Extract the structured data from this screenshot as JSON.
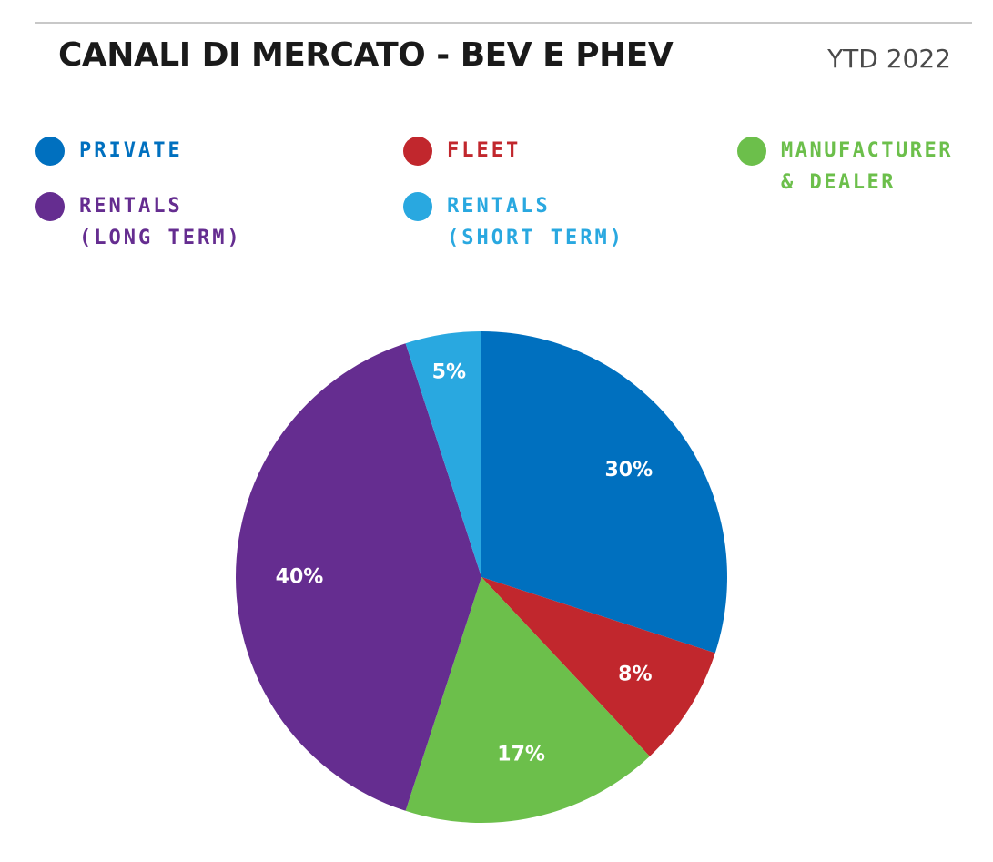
{
  "header": {
    "title": "CANALI DI MERCATO - BEV E PHEV",
    "period": "YTD 2022"
  },
  "legend": {
    "items": [
      {
        "lines": [
          "PRIVATE"
        ],
        "color": "#0070BF"
      },
      {
        "lines": [
          "FLEET"
        ],
        "color": "#C1272D"
      },
      {
        "lines": [
          "MANUFACTURER",
          "& DEALER"
        ],
        "color": "#6CBF4B"
      },
      {
        "lines": [
          "RENTALS",
          "(LONG TERM)"
        ],
        "color": "#652D90"
      },
      {
        "lines": [
          "RENTALS",
          "(SHORT TERM)"
        ],
        "color": "#29A8E0"
      }
    ]
  },
  "chart_data": {
    "type": "pie",
    "title": "CANALI DI MERCATO - BEV E PHEV",
    "subtitle": "YTD 2022",
    "legend_position": "top",
    "slices": [
      {
        "label": "PRIVATE",
        "value": 30,
        "display": "30%",
        "color": "#0070BF"
      },
      {
        "label": "FLEET",
        "value": 8,
        "display": "8%",
        "color": "#C1272D"
      },
      {
        "label": "MANUFACTURER & DEALER",
        "value": 17,
        "display": "17%",
        "color": "#6CBF4B"
      },
      {
        "label": "RENTALS (LONG TERM)",
        "value": 40,
        "display": "40%",
        "color": "#652D90"
      },
      {
        "label": "RENTALS (SHORT TERM)",
        "value": 5,
        "display": "5%",
        "color": "#29A8E0"
      }
    ]
  }
}
